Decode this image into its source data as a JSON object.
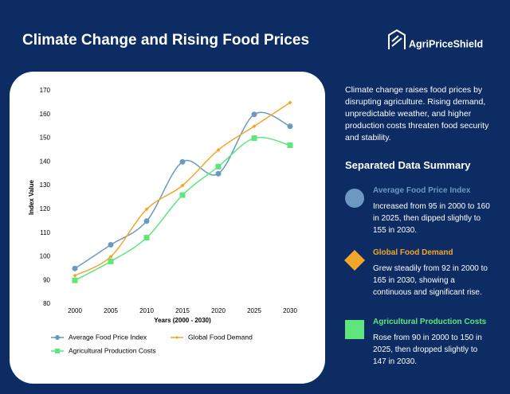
{
  "header": {
    "title": "Climate Change and Rising Food Prices",
    "brand": "AgriPriceShield"
  },
  "chart_data": {
    "type": "line",
    "xlabel": "Years (2000 - 2030)",
    "ylabel": "Index Value",
    "categories": [
      "2000",
      "2005",
      "2010",
      "2015",
      "2020",
      "2025",
      "2030"
    ],
    "series": [
      {
        "name": "Average Food Price Index",
        "color": "#6b99c2",
        "marker": "circle",
        "values": [
          95,
          105,
          115,
          140,
          135,
          160,
          155
        ]
      },
      {
        "name": "Global Food Demand",
        "color": "#f2a62a",
        "marker": "diamond",
        "values": [
          92,
          100,
          120,
          130,
          145,
          155,
          165
        ]
      },
      {
        "name": "Agricultural Production Costs",
        "color": "#5ee67c",
        "marker": "square",
        "values": [
          90,
          98,
          108,
          126,
          138,
          150,
          147
        ]
      }
    ],
    "ylim": [
      80,
      170
    ],
    "yticks": [
      80,
      90,
      100,
      110,
      120,
      130,
      140,
      150,
      160,
      170
    ],
    "grid": false,
    "smooth": true
  },
  "panel": {
    "description": "Climate change raises food prices by disrupting agriculture. Rising demand, unpredictable weather, and higher production costs threaten food security and stability.",
    "summary_title": "Separated Data Summary",
    "items": [
      {
        "heading": "Average Food Price Index",
        "text": "Increased from 95 in 2000 to 160 in 2025, then dipped slightly to 155 in 2030."
      },
      {
        "heading": "Global Food Demand",
        "text": "Grew steadily from 92 in 2000 to 165 in 2030, showing a continuous and significant rise."
      },
      {
        "heading": "Agricultural Production Costs",
        "text": "Rose from 90 in 2000 to 150 in 2025, then dropped slightly to 147 in 2030."
      }
    ]
  }
}
